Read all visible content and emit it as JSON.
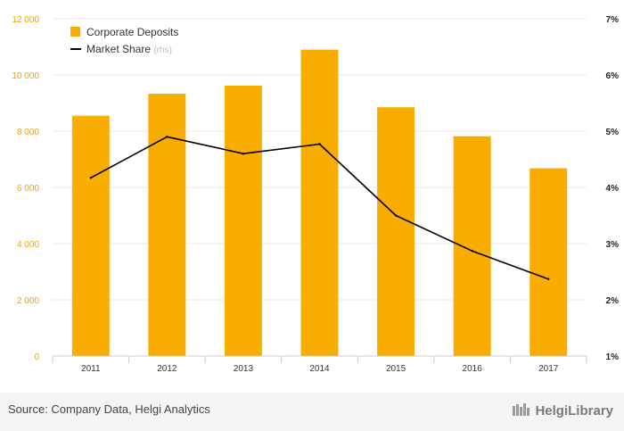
{
  "chart_data": {
    "type": "bar",
    "categories": [
      "2011",
      "2012",
      "2013",
      "2014",
      "2015",
      "2016",
      "2017"
    ],
    "series": [
      {
        "name": "Corporate Deposits",
        "axis": "left",
        "kind": "bar",
        "values": [
          8550,
          9330,
          9620,
          10900,
          8850,
          7820,
          6680
        ]
      },
      {
        "name": "Market Share",
        "axis": "right",
        "kind": "line",
        "values": [
          4.17,
          4.9,
          4.6,
          4.77,
          3.5,
          2.87,
          2.37
        ]
      }
    ],
    "legend": {
      "items": [
        "Corporate Deposits",
        "Market Share"
      ],
      "rhs_suffix": "(rhs)",
      "position": "top-left"
    },
    "y_left": {
      "min": 0,
      "max": 12000,
      "ticks": [
        0,
        2000,
        4000,
        6000,
        8000,
        10000,
        12000
      ],
      "tick_labels": [
        "0",
        "2 000",
        "4 000",
        "6 000",
        "8 000",
        "10 000",
        "12 000"
      ]
    },
    "y_right": {
      "min": 1,
      "max": 7,
      "ticks": [
        1,
        2,
        3,
        4,
        5,
        6,
        7
      ],
      "tick_labels": [
        "1%",
        "2%",
        "3%",
        "4%",
        "5%",
        "6%",
        "7%"
      ]
    },
    "grid": true
  },
  "colors": {
    "bar": "#f9ad00",
    "line": "#000000",
    "grid": "#e8e8e8",
    "left_tick": "#f0a500",
    "right_tick": "#222222"
  },
  "footer": {
    "source": "Source: Company Data, Helgi Analytics",
    "brand": "HelgiLibrary"
  }
}
